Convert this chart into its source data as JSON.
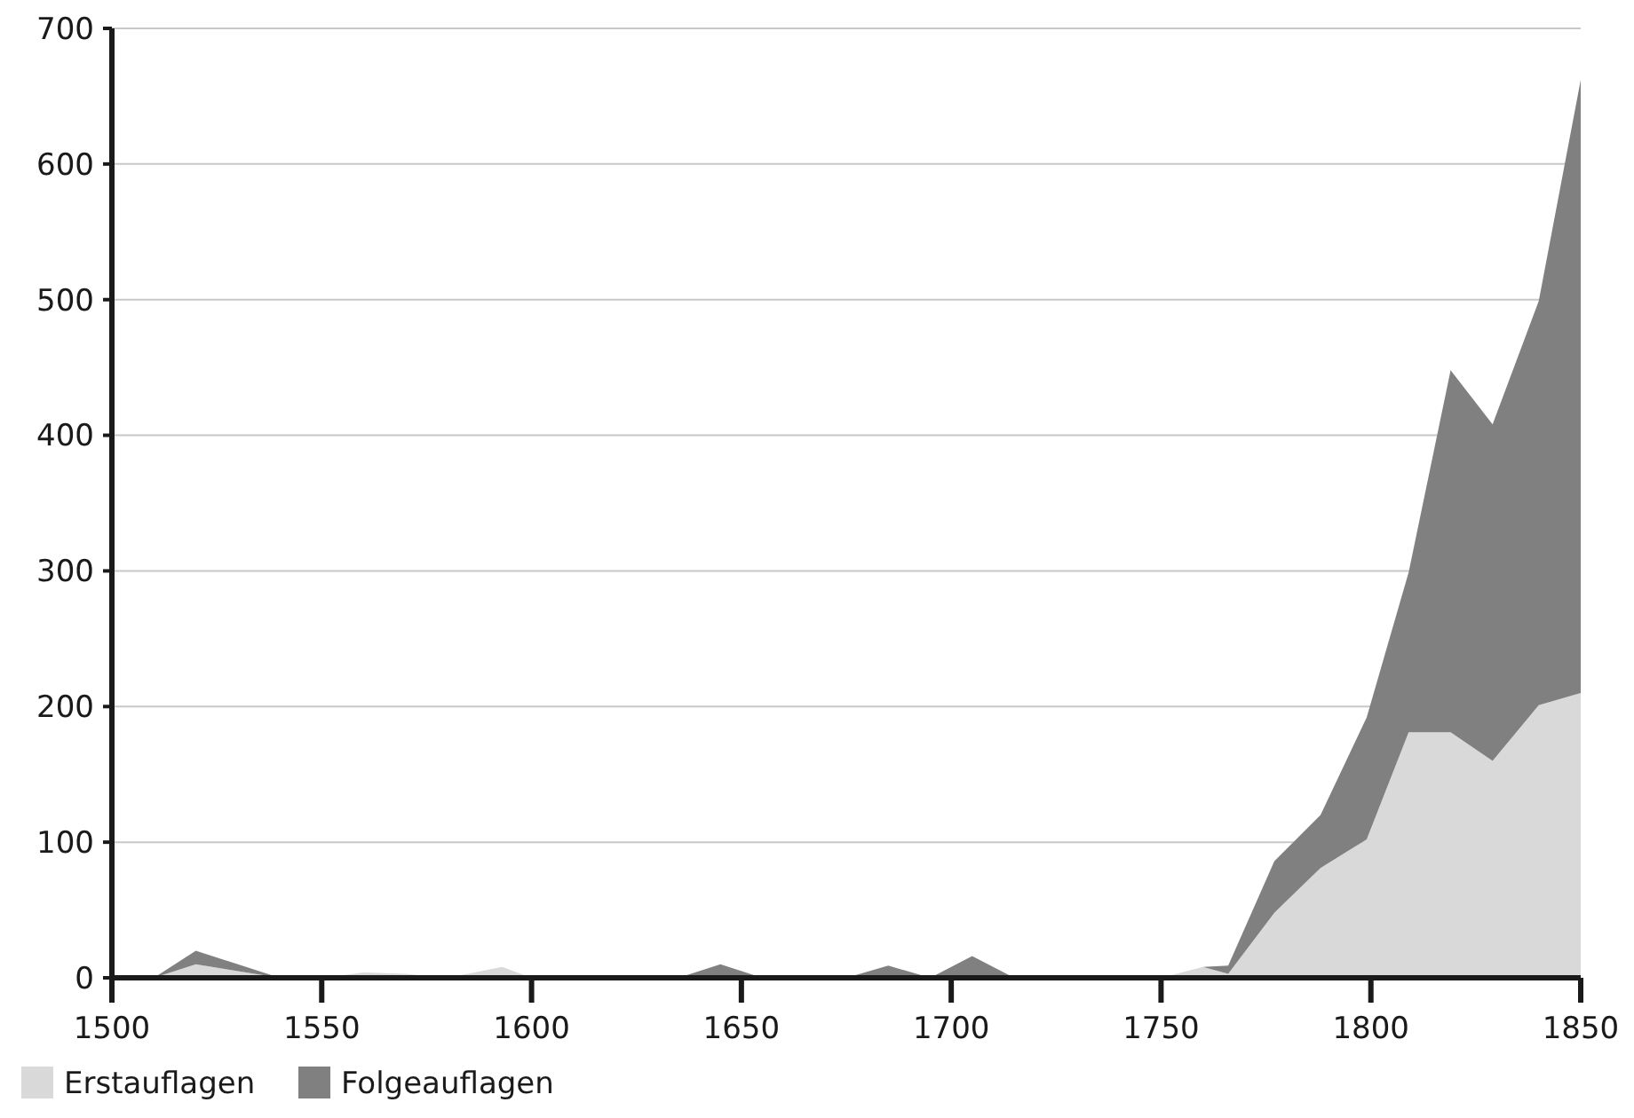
{
  "chart_data": {
    "type": "area",
    "stacked": true,
    "x": [
      1510,
      1520,
      1540,
      1550,
      1560,
      1570,
      1580,
      1593,
      1600,
      1635,
      1645,
      1655,
      1675,
      1685,
      1695,
      1705,
      1715,
      1750,
      1760,
      1766,
      1777,
      1788,
      1799,
      1809,
      1819,
      1829,
      1840,
      1850
    ],
    "series": [
      {
        "name": "Erstauflagen",
        "color": "#d9d9d9",
        "values": [
          0,
          10,
          0,
          0,
          4,
          3,
          0,
          8,
          0,
          0,
          0,
          0,
          0,
          0,
          0,
          0,
          0,
          0,
          8,
          3,
          48,
          81,
          102,
          181,
          181,
          160,
          201,
          210
        ]
      },
      {
        "name": "Folgeauflagen",
        "color": "#808080",
        "values": [
          0,
          10,
          0,
          0,
          0,
          0,
          0,
          0,
          0,
          0,
          10,
          0,
          0,
          9,
          0,
          16,
          0,
          0,
          0,
          6,
          38,
          39,
          90,
          118,
          267,
          248,
          298,
          452
        ]
      }
    ],
    "xlim": [
      1500,
      1850
    ],
    "ylim": [
      0,
      700
    ],
    "xticks": [
      1500,
      1550,
      1600,
      1650,
      1700,
      1750,
      1800,
      1850
    ],
    "yticks": [
      0,
      100,
      200,
      300,
      400,
      500,
      600,
      700
    ],
    "grid": "y",
    "legend": "bottom left"
  }
}
